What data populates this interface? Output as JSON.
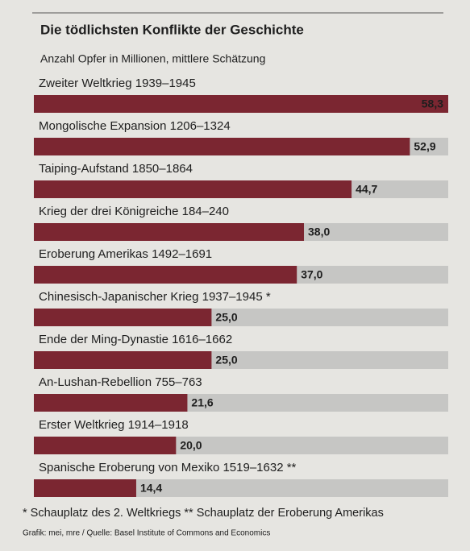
{
  "chart_data": {
    "type": "bar",
    "orientation": "horizontal",
    "title": "Die tödlichsten Konflikte der Geschichte",
    "subtitle": "Anzahl Opfer in Millionen, mittlere Schätzung",
    "categories": [
      "Zweiter Weltkrieg 1939–1945",
      "Mongolische Expansion 1206–1324",
      "Taiping-Aufstand 1850–1864",
      "Krieg der drei Königreiche 184–240",
      "Eroberung Amerikas 1492–1691",
      "Chinesisch-Japanischer Krieg 1937–1945 *",
      "Ende der Ming-Dynastie 1616–1662",
      "An-Lushan-Rebellion 755–763",
      "Erster Weltkrieg 1914–1918",
      "Spanische Eroberung von Mexiko 1519–1632 **"
    ],
    "values": [
      58.3,
      52.9,
      44.7,
      38.0,
      37.0,
      25.0,
      25.0,
      21.6,
      20.0,
      14.4
    ],
    "value_labels": [
      "58,3",
      "52,9",
      "44,7",
      "38,0",
      "37,0",
      "25,0",
      "25,0",
      "21,6",
      "20,0",
      "14,4"
    ],
    "color": "#7b2631",
    "track_color": "#c6c6c4",
    "footnote": "* Schauplatz des 2. Weltkriegs ** Schauplatz der Eroberung Amerikas",
    "source": "Grafik: mei, mre / Quelle: Basel Institute of Commons and Economics"
  }
}
